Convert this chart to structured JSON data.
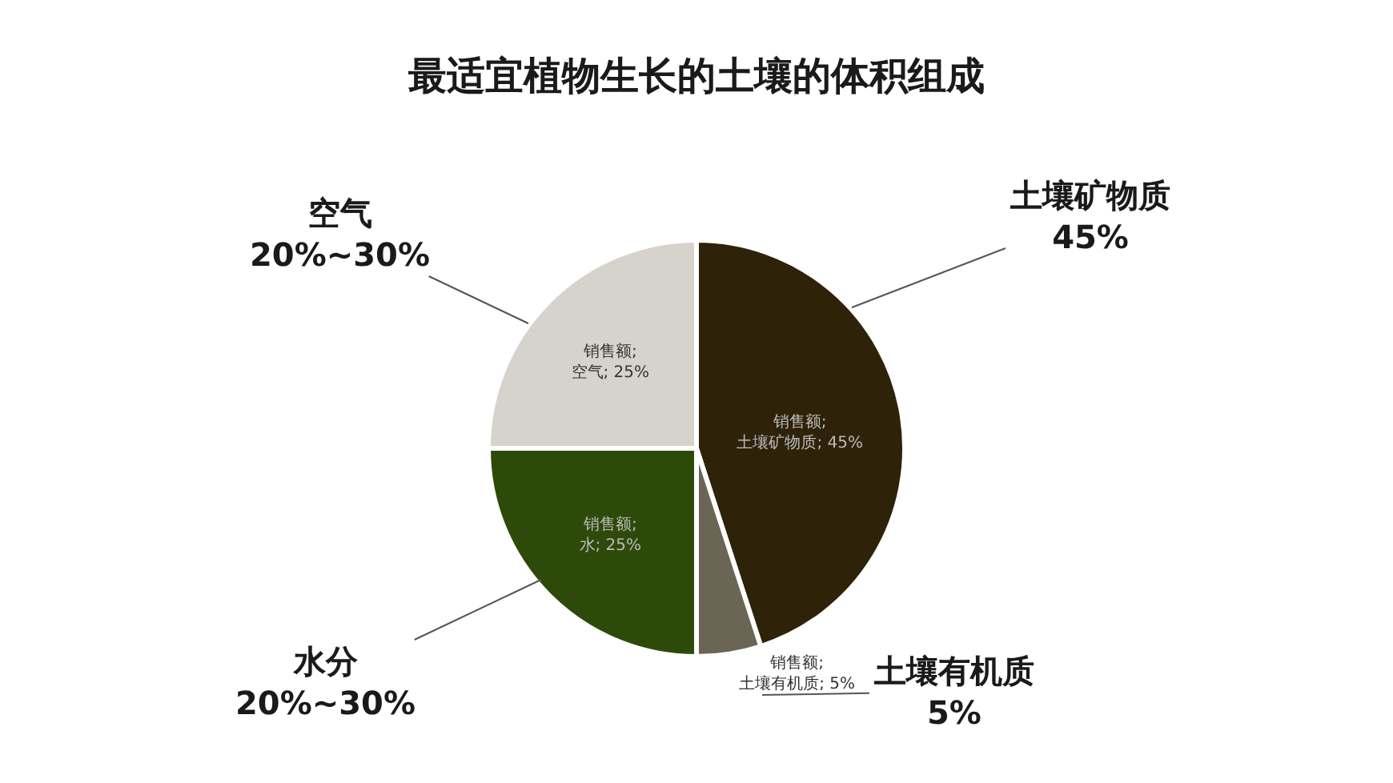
{
  "chart_data": {
    "type": "pie",
    "title": "最适宜植物生长的土壤的体积组成",
    "categories": [
      "土壤矿物质",
      "土壤有机质",
      "水分",
      "空气"
    ],
    "values": [
      45,
      5,
      25,
      25
    ],
    "colors": [
      "#2e2209",
      "#6b6555",
      "#2e4a0a",
      "#d6d3cd"
    ],
    "value_labels": [
      "销售额; 土壤矿物质; 45%",
      "销售额; 土壤有机质; 5%",
      "销售额; 水; 25%",
      "销售额; 空气; 25%"
    ],
    "annotations": [
      "45%",
      "5%",
      "20%~30%",
      "20%~30%"
    ],
    "legend": false
  }
}
